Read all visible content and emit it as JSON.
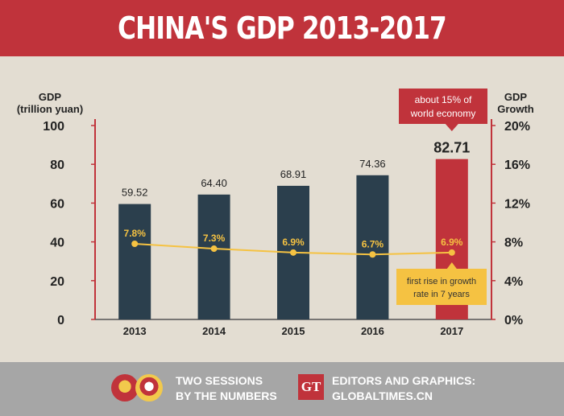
{
  "title": "CHINA'S GDP 2013-2017",
  "chart_data": {
    "type": "bar",
    "categories": [
      "2013",
      "2014",
      "2015",
      "2016",
      "2017"
    ],
    "series": [
      {
        "values": [
          59.52,
          64.4,
          68.91,
          74.36,
          82.71
        ],
        "labels": [
          "59.52",
          "64.40",
          "68.91",
          "74.36",
          "82.71"
        ]
      },
      {
        "values": [
          7.8,
          7.3,
          6.9,
          6.7,
          6.9
        ],
        "labels": [
          "7.8%",
          "7.3%",
          "6.9%",
          "6.7%",
          "6.9%"
        ]
      }
    ],
    "left_axis": {
      "label_line1": "GDP",
      "label_line2": "(trillion yuan)",
      "ylim": [
        0,
        100
      ],
      "ticks": [
        "0",
        "20",
        "40",
        "60",
        "80",
        "100"
      ]
    },
    "right_axis": {
      "label_line1": "GDP",
      "label_line2": "Growth",
      "ylim": [
        0,
        20
      ],
      "ticks": [
        "0%",
        "4%",
        "8%",
        "12%",
        "16%",
        "20%"
      ]
    },
    "annotations": {
      "world_share": [
        "about 15% of",
        "world economy"
      ],
      "growth_note": [
        "first rise in growth",
        "rate in 7 years"
      ]
    },
    "colors": {
      "bar": "#2b3f4d",
      "highlight_bar": "#c0333b",
      "line": "#f5c242",
      "right_axis": "#c0333b"
    },
    "grid": false
  },
  "footer": {
    "left_line1": "TWO SESSIONS",
    "left_line2": "BY THE NUMBERS",
    "logo_text": "GT",
    "right_line1": "EDITORS AND GRAPHICS:",
    "right_line2": "GLOBALTIMES.CN"
  }
}
